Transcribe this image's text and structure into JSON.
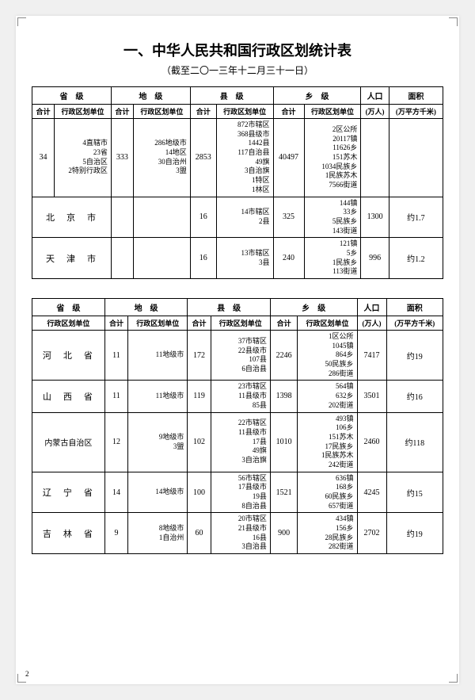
{
  "title": "一、中华人民共和国行政区划统计表",
  "subtitle": "（截至二〇一三年十二月三十一日）",
  "page_number": "2",
  "headers": {
    "province": "省　级",
    "prefecture": "地　级",
    "county": "县　级",
    "township": "乡　级",
    "population": "人口",
    "area": "面积",
    "heji": "合计",
    "unit": "行政区划单位",
    "pop_unit": "(万人)",
    "area_unit": "(万平方千米)"
  },
  "table1": {
    "summary": {
      "prov_heji": "34",
      "prov_unit": "4直辖市\n23省\n5自治区\n2特别行政区",
      "pref_heji": "333",
      "pref_unit": "286地级市\n14地区\n30自治州\n3盟",
      "county_heji": "2853",
      "county_unit": "872市辖区\n368县级市\n1442县\n117自治县\n49旗\n3自治旗\n1特区\n1林区",
      "town_heji": "40497",
      "town_unit": "2区公所\n20117镇\n11626乡\n151苏木\n1034民族乡\n1民族苏木\n7566街道"
    },
    "rows": [
      {
        "name": "北　京　市",
        "pref_heji": "",
        "pref_unit": "",
        "county_heji": "16",
        "county_unit": "14市辖区\n2县",
        "town_heji": "325",
        "town_unit": "144镇\n33乡\n5民族乡\n143街道",
        "pop": "1300",
        "area": "约1.7"
      },
      {
        "name": "天　津　市",
        "pref_heji": "",
        "pref_unit": "",
        "county_heji": "16",
        "county_unit": "13市辖区\n3县",
        "town_heji": "240",
        "town_unit": "121镇\n5乡\n1民族乡\n113街道",
        "pop": "996",
        "area": "约1.2"
      }
    ]
  },
  "table2": {
    "rows": [
      {
        "name": "河　北　省",
        "pref_heji": "11",
        "pref_unit": "11地级市",
        "county_heji": "172",
        "county_unit": "37市辖区\n22县级市\n107县\n6自治县",
        "town_heji": "2246",
        "town_unit": "1区公所\n1045镇\n864乡\n50民族乡\n286街道",
        "pop": "7417",
        "area": "约19"
      },
      {
        "name": "山　西　省",
        "pref_heji": "11",
        "pref_unit": "11地级市",
        "county_heji": "119",
        "county_unit": "23市辖区\n11县级市\n85县",
        "town_heji": "1398",
        "town_unit": "564镇\n632乡\n202街道",
        "pop": "3501",
        "area": "约16"
      },
      {
        "name": "内蒙古自治区",
        "pref_heji": "12",
        "pref_unit": "9地级市\n3盟",
        "county_heji": "102",
        "county_unit": "22市辖区\n11县级市\n17县\n49旗\n3自治旗",
        "town_heji": "1010",
        "town_unit": "493镇\n106乡\n151苏木\n17民族乡\n1民族苏木\n242街道",
        "pop": "2460",
        "area": "约118"
      },
      {
        "name": "辽　宁　省",
        "pref_heji": "14",
        "pref_unit": "14地级市",
        "county_heji": "100",
        "county_unit": "56市辖区\n17县级市\n19县\n8自治县",
        "town_heji": "1521",
        "town_unit": "636镇\n168乡\n60民族乡\n657街道",
        "pop": "4245",
        "area": "约15"
      },
      {
        "name": "吉　林　省",
        "pref_heji": "9",
        "pref_unit": "8地级市\n1自治州",
        "county_heji": "60",
        "county_unit": "20市辖区\n21县级市\n16县\n3自治县",
        "town_heji": "900",
        "town_unit": "434镇\n156乡\n28民族乡\n282街道",
        "pop": "2702",
        "area": "约19"
      }
    ]
  }
}
